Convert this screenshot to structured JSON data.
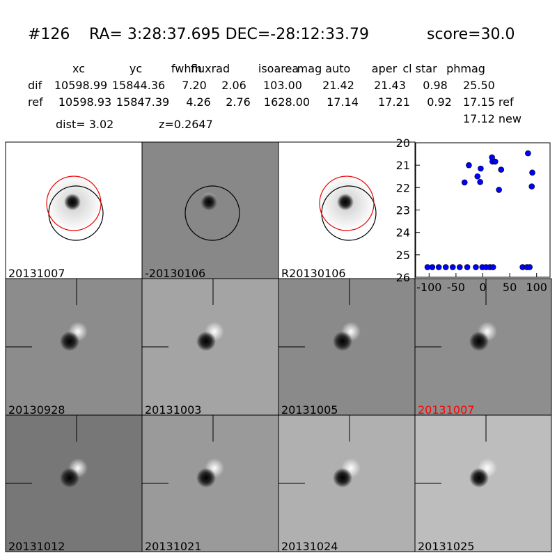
{
  "header": {
    "id": "#126",
    "coords": "RA= 3:28:37.695 DEC=-28:12:33.79",
    "score": "score=30.0"
  },
  "table": {
    "columns": [
      "xc",
      "yc",
      "fwhm",
      "fluxrad",
      "isoarea",
      "mag auto",
      "aper",
      "cl star",
      "phmag"
    ],
    "rows": [
      [
        "dif",
        "10598.99",
        "15844.36",
        "7.20",
        "2.06",
        "103.00",
        "21.42",
        "21.43",
        "0.98",
        "25.50"
      ],
      [
        "ref",
        "10598.93",
        "15847.39",
        "4.26",
        "2.76",
        "1628.00",
        "17.14",
        "17.21",
        "0.92",
        "17.15 ref"
      ]
    ],
    "extra": "17.12 new",
    "dist": "dist=  3.02",
    "z": "z=0.2647"
  },
  "panels": [
    "20131007",
    "-20130106",
    "R20130106",
    "20130928",
    "20131003",
    "20131005",
    "20131007",
    "20131012",
    "20131021",
    "20131024",
    "20131025"
  ],
  "chart_data": {
    "type": "scatter",
    "color": "#0000ff",
    "x": [
      -103,
      -94,
      -82,
      -69,
      -56,
      -43,
      -29,
      -13,
      -1,
      6,
      13,
      19,
      74,
      82,
      87,
      17,
      18,
      23,
      -26,
      -4,
      34,
      -10,
      -5,
      -34,
      30,
      84,
      92,
      91
    ],
    "values": [
      25.55,
      25.55,
      25.55,
      25.55,
      25.55,
      25.55,
      25.55,
      25.55,
      25.55,
      25.55,
      25.55,
      25.55,
      25.55,
      25.55,
      25.55,
      20.65,
      20.84,
      20.84,
      21.0,
      21.15,
      21.2,
      21.5,
      21.75,
      21.77,
      22.1,
      20.47,
      21.33,
      21.95
    ],
    "xlim": [
      -125,
      125
    ],
    "ylim": [
      26,
      20
    ],
    "xticks": [
      -100,
      -50,
      0,
      50,
      100
    ],
    "yticks": [
      20,
      21,
      22,
      23,
      24,
      25,
      26
    ]
  }
}
